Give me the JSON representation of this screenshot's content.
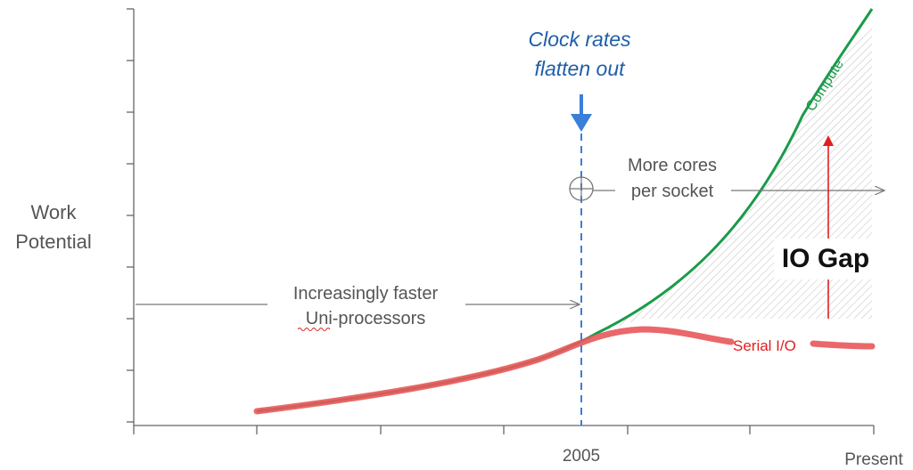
{
  "axes": {
    "ylabel_line1": "Work",
    "ylabel_line2": "Potential",
    "x_tick_2005": "2005",
    "x_tick_present": "Present"
  },
  "annotations": {
    "clock_line1": "Clock rates",
    "clock_line2": "flatten out",
    "cores_line1": "More cores",
    "cores_line2": "per socket",
    "uni_line1": "Increasingly faster",
    "uni_line2": "Uni-processors",
    "io_gap": "IO Gap"
  },
  "series": {
    "compute": "Compute",
    "serial_io": "Serial I/O"
  },
  "colors": {
    "compute": "#1a9b4a",
    "serial_io": "#e8585a",
    "clock_blue": "#1f5fa8",
    "arrow_blue": "#3a7fd8",
    "gap_arrow": "#e02020",
    "text_gray": "#555555",
    "axis": "#666666"
  }
}
